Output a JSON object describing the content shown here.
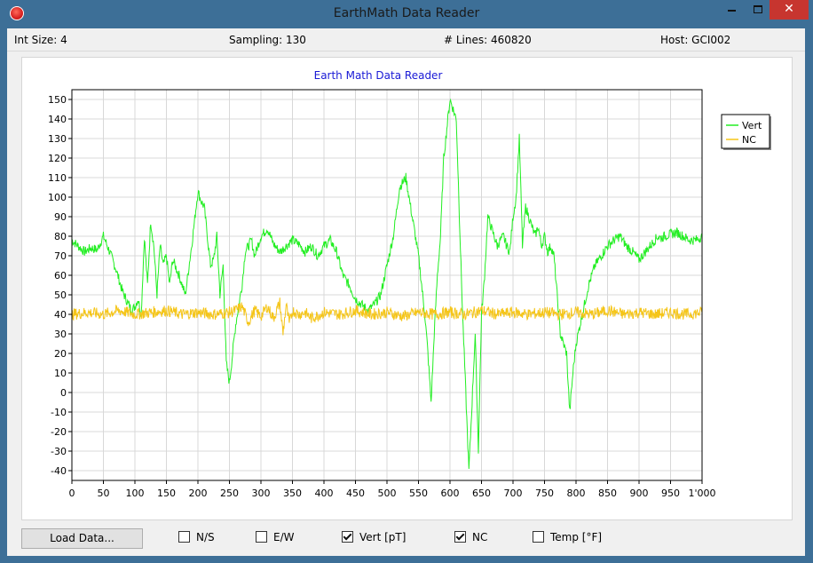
{
  "window": {
    "title": "EarthMath Data Reader"
  },
  "status": {
    "int_size": "Int Size: 4",
    "sampling": "Sampling: 130",
    "lines": "# Lines: 460820",
    "host": "Host: GCI002"
  },
  "controls": {
    "load_label": "Load Data...",
    "checkboxes": [
      {
        "label": "N/S",
        "checked": false
      },
      {
        "label": "E/W",
        "checked": false
      },
      {
        "label": "Vert [pT]",
        "checked": true
      },
      {
        "label": "NC",
        "checked": true
      },
      {
        "label": "Temp [°F]",
        "checked": false
      }
    ]
  },
  "chart_data": {
    "type": "line",
    "title": "Earth Math Data Reader",
    "xlabel": "",
    "ylabel": "",
    "xlim": [
      0,
      1000
    ],
    "ylim": [
      -45,
      155
    ],
    "x_ticks": [
      0,
      50,
      100,
      150,
      200,
      250,
      300,
      350,
      400,
      450,
      500,
      550,
      600,
      650,
      700,
      750,
      800,
      850,
      900,
      950,
      1000
    ],
    "x_tick_labels": [
      "0",
      "50",
      "100",
      "150",
      "200",
      "250",
      "300",
      "350",
      "400",
      "450",
      "500",
      "550",
      "600",
      "650",
      "700",
      "750",
      "800",
      "850",
      "900",
      "950",
      "1'000"
    ],
    "y_ticks": [
      -40,
      -30,
      -20,
      -10,
      0,
      10,
      20,
      30,
      40,
      50,
      60,
      70,
      80,
      90,
      100,
      110,
      120,
      130,
      140,
      150
    ],
    "grid": true,
    "legend_position": "right",
    "series": [
      {
        "name": "Vert",
        "color": "#22ee22",
        "x": [
          0,
          10,
          20,
          30,
          40,
          50,
          55,
          60,
          70,
          80,
          90,
          95,
          100,
          105,
          110,
          115,
          120,
          125,
          130,
          135,
          140,
          145,
          150,
          155,
          160,
          170,
          180,
          190,
          200,
          205,
          210,
          215,
          220,
          225,
          230,
          235,
          240,
          245,
          250,
          255,
          260,
          265,
          270,
          275,
          280,
          285,
          290,
          295,
          300,
          305,
          310,
          320,
          330,
          340,
          350,
          360,
          370,
          380,
          390,
          400,
          410,
          420,
          430,
          440,
          450,
          460,
          470,
          480,
          490,
          500,
          510,
          520,
          530,
          540,
          550,
          560,
          565,
          570,
          575,
          580,
          585,
          590,
          600,
          610,
          620,
          630,
          640,
          645,
          650,
          655,
          660,
          665,
          670,
          675,
          680,
          685,
          690,
          695,
          700,
          705,
          710,
          715,
          720,
          725,
          730,
          735,
          740,
          745,
          750,
          755,
          760,
          765,
          770,
          775,
          780,
          785,
          790,
          795,
          800,
          810,
          820,
          830,
          840,
          850,
          860,
          870,
          880,
          890,
          895,
          900,
          905,
          910,
          915,
          920,
          925,
          930,
          935,
          940,
          950,
          960,
          970,
          980,
          990,
          1000
        ],
        "values": [
          78,
          75,
          72,
          74,
          73,
          80,
          76,
          72,
          63,
          52,
          45,
          42,
          44,
          48,
          40,
          80,
          55,
          88,
          75,
          50,
          75,
          65,
          70,
          55,
          68,
          60,
          50,
          75,
          103,
          98,
          95,
          80,
          65,
          68,
          80,
          50,
          65,
          15,
          5,
          20,
          35,
          45,
          55,
          72,
          75,
          78,
          70,
          75,
          80,
          82,
          84,
          76,
          72,
          75,
          78,
          76,
          72,
          75,
          70,
          75,
          78,
          72,
          60,
          55,
          48,
          45,
          42,
          45,
          50,
          65,
          80,
          105,
          110,
          90,
          70,
          40,
          20,
          -5,
          30,
          60,
          80,
          120,
          150,
          140,
          40,
          -40,
          30,
          -30,
          40,
          60,
          90,
          85,
          80,
          75,
          78,
          80,
          75,
          72,
          90,
          100,
          130,
          75,
          95,
          90,
          85,
          80,
          85,
          75,
          80,
          72,
          75,
          70,
          50,
          30,
          25,
          20,
          -10,
          10,
          25,
          40,
          55,
          65,
          70,
          75,
          78,
          80,
          75,
          72,
          70,
          68,
          70,
          72,
          74,
          76,
          78,
          80,
          79,
          80,
          81,
          82,
          80,
          78,
          78,
          80
        ]
      },
      {
        "name": "NC",
        "color": "#f5c518",
        "x": [
          0,
          25,
          50,
          75,
          100,
          125,
          150,
          175,
          200,
          225,
          250,
          260,
          270,
          280,
          290,
          300,
          310,
          320,
          330,
          335,
          340,
          345,
          350,
          360,
          370,
          380,
          400,
          425,
          450,
          475,
          500,
          525,
          550,
          575,
          600,
          625,
          650,
          675,
          700,
          725,
          750,
          775,
          800,
          825,
          850,
          875,
          900,
          925,
          950,
          975,
          1000
        ],
        "values": [
          40,
          41,
          40,
          42,
          40,
          41,
          42,
          40,
          41,
          40,
          41,
          42,
          44,
          36,
          42,
          39,
          44,
          38,
          46,
          30,
          45,
          35,
          42,
          40,
          41,
          38,
          41,
          40,
          42,
          40,
          41,
          39,
          41,
          40,
          41,
          40,
          42,
          40,
          41,
          40,
          41,
          40,
          41,
          40,
          42,
          40,
          41,
          40,
          41,
          40,
          41
        ]
      }
    ]
  }
}
